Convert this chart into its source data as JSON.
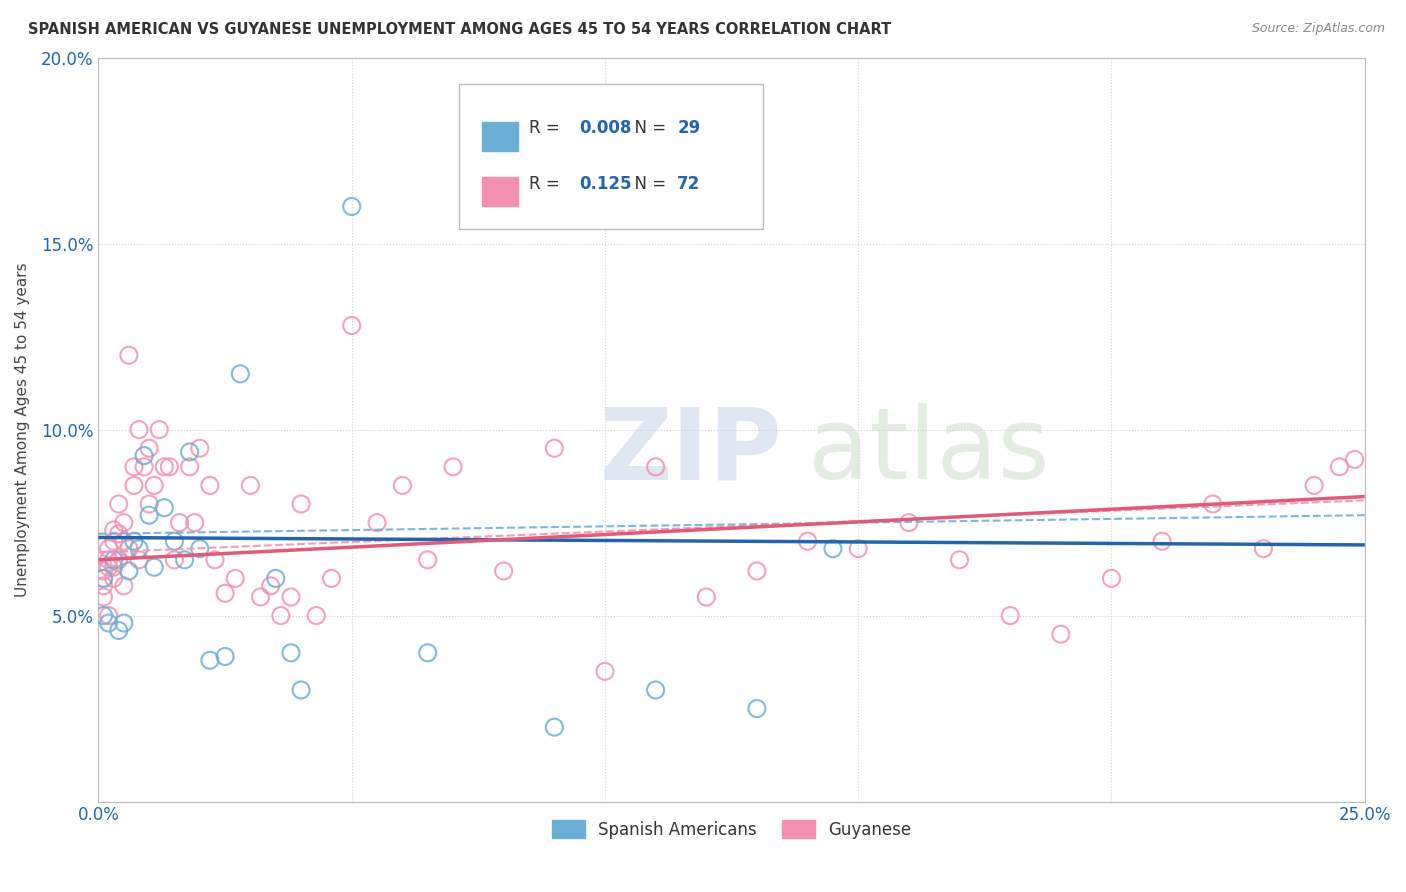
{
  "title": "SPANISH AMERICAN VS GUYANESE UNEMPLOYMENT AMONG AGES 45 TO 54 YEARS CORRELATION CHART",
  "source": "Source: ZipAtlas.com",
  "ylabel": "Unemployment Among Ages 45 to 54 years",
  "xlim": [
    0.0,
    0.25
  ],
  "ylim": [
    0.0,
    0.2
  ],
  "xtick_positions": [
    0.0,
    0.05,
    0.1,
    0.15,
    0.2,
    0.25
  ],
  "xtick_labels": [
    "0.0%",
    "",
    "",
    "",
    "",
    "25.0%"
  ],
  "ytick_positions": [
    0.0,
    0.05,
    0.1,
    0.15,
    0.2
  ],
  "ytick_labels": [
    "",
    "5.0%",
    "10.0%",
    "15.0%",
    "20.0%"
  ],
  "sa_color": "#6baed6",
  "gu_color": "#f48fb1",
  "sa_line_color": "#2166ac",
  "gu_line_color": "#e05a7a",
  "sa_x": [
    0.001,
    0.001,
    0.002,
    0.003,
    0.004,
    0.005,
    0.006,
    0.007,
    0.008,
    0.009,
    0.01,
    0.011,
    0.013,
    0.015,
    0.017,
    0.018,
    0.02,
    0.022,
    0.025,
    0.028,
    0.035,
    0.038,
    0.04,
    0.05,
    0.065,
    0.09,
    0.11,
    0.13,
    0.145
  ],
  "sa_y": [
    0.06,
    0.05,
    0.048,
    0.065,
    0.046,
    0.048,
    0.062,
    0.07,
    0.068,
    0.093,
    0.077,
    0.063,
    0.079,
    0.07,
    0.065,
    0.094,
    0.068,
    0.038,
    0.039,
    0.115,
    0.06,
    0.04,
    0.03,
    0.16,
    0.04,
    0.02,
    0.03,
    0.025,
    0.068
  ],
  "gu_x": [
    0.001,
    0.001,
    0.001,
    0.001,
    0.002,
    0.002,
    0.002,
    0.002,
    0.003,
    0.003,
    0.003,
    0.003,
    0.004,
    0.004,
    0.004,
    0.005,
    0.005,
    0.005,
    0.006,
    0.006,
    0.007,
    0.007,
    0.008,
    0.008,
    0.009,
    0.01,
    0.01,
    0.011,
    0.012,
    0.013,
    0.014,
    0.015,
    0.016,
    0.018,
    0.019,
    0.02,
    0.022,
    0.023,
    0.025,
    0.027,
    0.03,
    0.032,
    0.034,
    0.036,
    0.038,
    0.04,
    0.043,
    0.046,
    0.05,
    0.055,
    0.06,
    0.065,
    0.07,
    0.08,
    0.09,
    0.1,
    0.11,
    0.12,
    0.13,
    0.14,
    0.15,
    0.16,
    0.17,
    0.18,
    0.19,
    0.2,
    0.21,
    0.22,
    0.23,
    0.24,
    0.245,
    0.248
  ],
  "gu_y": [
    0.062,
    0.058,
    0.055,
    0.06,
    0.063,
    0.065,
    0.068,
    0.05,
    0.073,
    0.07,
    0.06,
    0.063,
    0.08,
    0.072,
    0.065,
    0.058,
    0.07,
    0.075,
    0.12,
    0.068,
    0.09,
    0.085,
    0.065,
    0.1,
    0.09,
    0.08,
    0.095,
    0.085,
    0.1,
    0.09,
    0.09,
    0.065,
    0.075,
    0.09,
    0.075,
    0.095,
    0.085,
    0.065,
    0.056,
    0.06,
    0.085,
    0.055,
    0.058,
    0.05,
    0.055,
    0.08,
    0.05,
    0.06,
    0.128,
    0.075,
    0.085,
    0.065,
    0.09,
    0.062,
    0.095,
    0.035,
    0.09,
    0.055,
    0.062,
    0.07,
    0.068,
    0.075,
    0.065,
    0.05,
    0.045,
    0.06,
    0.07,
    0.08,
    0.068,
    0.085,
    0.09,
    0.092
  ],
  "watermark_zip_color": "#c5d5e8",
  "watermark_atlas_color": "#c5d8c0",
  "legend_R1": "0.008",
  "legend_N1": "29",
  "legend_R2": "0.125",
  "legend_N2": "72"
}
